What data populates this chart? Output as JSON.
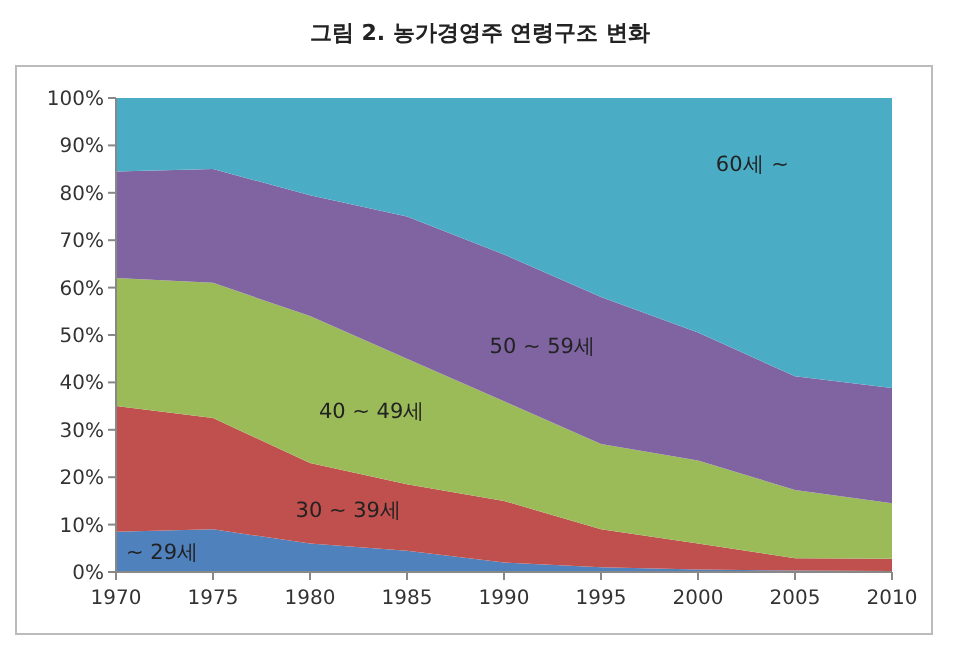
{
  "chart_data": {
    "type": "area",
    "stacked": true,
    "title": "그림 2. 농가경영주 연령구조 변화",
    "x": [
      1970,
      1975,
      1980,
      1985,
      1990,
      1995,
      2000,
      2005,
      2010
    ],
    "xlim": [
      1970,
      2010
    ],
    "xticks": [
      1970,
      1975,
      1980,
      1985,
      1990,
      1995,
      2000,
      2005,
      2010
    ],
    "ylim": [
      0,
      100
    ],
    "yticks": [
      {
        "value": 0,
        "label": "0%"
      },
      {
        "value": 10,
        "label": "10%"
      },
      {
        "value": 20,
        "label": "20%"
      },
      {
        "value": 30,
        "label": "30%"
      },
      {
        "value": 40,
        "label": "40%"
      },
      {
        "value": 50,
        "label": "50%"
      },
      {
        "value": 60,
        "label": "60%"
      },
      {
        "value": 70,
        "label": "70%"
      },
      {
        "value": 80,
        "label": "80%"
      },
      {
        "value": 90,
        "label": "90%"
      },
      {
        "value": 100,
        "label": "100%"
      }
    ],
    "grid": false,
    "series": [
      {
        "name": "~ 29세",
        "color": "#4f81bd",
        "values": [
          8.5,
          9,
          6,
          4.5,
          2,
          1,
          0.5,
          0.3,
          0.2
        ]
      },
      {
        "name": "30 ~ 39세",
        "color": "#c0504d",
        "values": [
          26.5,
          23.5,
          17,
          14,
          13,
          8,
          5.5,
          2.6,
          2.6
        ]
      },
      {
        "name": "40 ~ 49세",
        "color": "#9bbb59",
        "values": [
          27,
          28.5,
          31,
          26.5,
          21,
          18,
          17.5,
          14.4,
          11.7
        ]
      },
      {
        "name": "50 ~ 59세",
        "color": "#8064a2",
        "values": [
          22.5,
          24,
          25.5,
          30,
          31,
          31,
          27,
          24,
          24.3
        ]
      },
      {
        "name": "60세 ~",
        "color": "#4bacc6",
        "values": [
          15.5,
          15,
          20.5,
          25,
          33,
          42,
          49.5,
          58.7,
          61.2
        ]
      }
    ]
  }
}
